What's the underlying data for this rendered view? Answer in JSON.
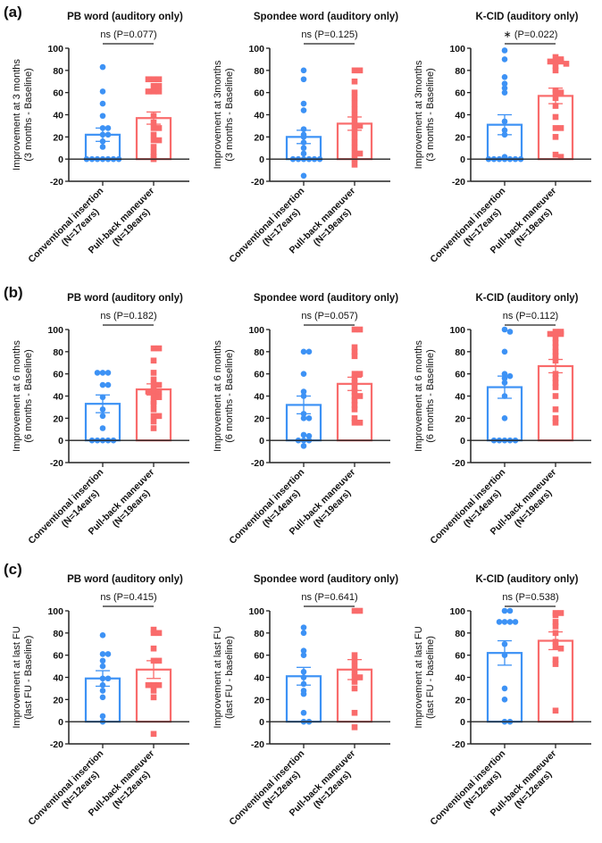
{
  "colors": {
    "conventional": "#3d92f5",
    "pullback": "#f96b6b",
    "axis": "#222222"
  },
  "row_labels": [
    "(a)",
    "(b)",
    "(c)"
  ],
  "chart_data": [
    {
      "type": "bar",
      "row": 0,
      "title": "PB word (auditory only)",
      "annotation": "ns (P=0.077)",
      "ylabel": [
        "Improvement at 3 months",
        "(3 months - Baseline)"
      ],
      "ylim": [
        -20,
        100
      ],
      "yticks": [
        -20,
        0,
        20,
        40,
        60,
        80,
        100
      ],
      "categories": [
        [
          "Conventional insertion",
          "(N=17ears)"
        ],
        [
          "Pull-back maneuver",
          "(N=19ears)"
        ]
      ],
      "series": [
        {
          "name": "Conventional insertion",
          "mean": 22,
          "sem": 6,
          "points": [
            83,
            61,
            50,
            39,
            28,
            28,
            22,
            22,
            16,
            11,
            0,
            0,
            0,
            0,
            0,
            0,
            0
          ]
        },
        {
          "name": "Pull-back maneuver",
          "mean": 37,
          "sem": 5.5,
          "points": [
            72,
            72,
            72,
            66,
            66,
            61,
            61,
            61,
            39,
            33,
            28,
            28,
            22,
            17,
            17,
            11,
            6,
            2,
            0
          ]
        }
      ]
    },
    {
      "type": "bar",
      "row": 0,
      "title": "Spondee word (auditory only)",
      "annotation": "ns (P=0.125)",
      "ylabel": [
        "Improvement at 3months",
        "(3 months - Baseline)"
      ],
      "ylim": [
        -20,
        100
      ],
      "yticks": [
        -20,
        0,
        20,
        40,
        60,
        80,
        100
      ],
      "categories": [
        [
          "Conventional insertion",
          "(N=17ears)"
        ],
        [
          "Pull-back maneuver",
          "(N=19ears)"
        ]
      ],
      "series": [
        {
          "name": "Conventional insertion",
          "mean": 20,
          "sem": 6,
          "points": [
            80,
            72,
            50,
            44,
            27,
            22,
            20,
            15,
            10,
            5,
            0,
            0,
            0,
            0,
            0,
            0,
            -15
          ]
        },
        {
          "name": "Pull-back maneuver",
          "mean": 32,
          "sem": 6,
          "points": [
            80,
            80,
            70,
            60,
            55,
            50,
            45,
            40,
            35,
            30,
            30,
            25,
            20,
            15,
            10,
            5,
            5,
            0,
            -5
          ]
        }
      ]
    },
    {
      "type": "bar",
      "row": 0,
      "title": "K-CID (auditory only)",
      "annotation": "∗ (P=0.022)",
      "ylabel": [
        "Improvement at 3months",
        "(3 months - Baseline)"
      ],
      "ylim": [
        -20,
        100
      ],
      "yticks": [
        -20,
        0,
        20,
        40,
        60,
        80,
        100
      ],
      "categories": [
        [
          "Conventional insertion",
          "(N=17ears)"
        ],
        [
          "Pull-back maneuver",
          "(N=19ears)"
        ]
      ],
      "series": [
        {
          "name": "Conventional insertion",
          "mean": 31,
          "sem": 9,
          "points": [
            98,
            90,
            74,
            68,
            64,
            60,
            34,
            26,
            22,
            2,
            0,
            0,
            0,
            0,
            0,
            0,
            0
          ]
        },
        {
          "name": "Pull-back maneuver",
          "mean": 57,
          "sem": 7,
          "points": [
            92,
            90,
            88,
            88,
            88,
            86,
            84,
            80,
            62,
            60,
            60,
            55,
            48,
            38,
            28,
            28,
            20,
            4,
            2
          ]
        }
      ]
    },
    {
      "type": "bar",
      "row": 1,
      "title": "PB word (auditory only)",
      "annotation": "ns (P=0.182)",
      "ylabel": [
        "Improvement at 6 months",
        "(6 months - Baseline)"
      ],
      "ylim": [
        -20,
        100
      ],
      "yticks": [
        -20,
        0,
        20,
        40,
        60,
        80,
        100
      ],
      "categories": [
        [
          "Conventional insertion",
          "(N=14ears)"
        ],
        [
          "Pull-back maneuver",
          "(N=19ears)"
        ]
      ],
      "series": [
        {
          "name": "Conventional insertion",
          "mean": 33,
          "sem": 8,
          "points": [
            61,
            61,
            61,
            50,
            50,
            39,
            28,
            22,
            11,
            0,
            0,
            0,
            0,
            0
          ]
        },
        {
          "name": "Pull-back maneuver",
          "mean": 46,
          "sem": 5,
          "points": [
            83,
            83,
            72,
            61,
            55,
            50,
            50,
            45,
            44,
            44,
            40,
            39,
            35,
            33,
            28,
            22,
            22,
            17,
            11
          ]
        }
      ]
    },
    {
      "type": "bar",
      "row": 1,
      "title": "Spondee word (auditory only)",
      "annotation": "ns (P=0.057)",
      "ylabel": [
        "Improvement at 6 months",
        "(6 months - Baseline)"
      ],
      "ylim": [
        -20,
        100
      ],
      "yticks": [
        -20,
        0,
        20,
        40,
        60,
        80,
        100
      ],
      "categories": [
        [
          "Conventional insertion",
          "(N=14ears)"
        ],
        [
          "Pull-back maneuver",
          "(N=19ears)"
        ]
      ],
      "series": [
        {
          "name": "Conventional insertion",
          "mean": 32,
          "sem": 8,
          "points": [
            80,
            80,
            60,
            44,
            40,
            24,
            20,
            20,
            5,
            4,
            0,
            0,
            0,
            -5
          ]
        },
        {
          "name": "Pull-back maneuver",
          "mean": 51,
          "sem": 6,
          "points": [
            100,
            100,
            84,
            80,
            76,
            60,
            60,
            56,
            52,
            48,
            44,
            40,
            40,
            36,
            32,
            28,
            20,
            16,
            16
          ]
        }
      ]
    },
    {
      "type": "bar",
      "row": 1,
      "title": "K-CID (auditory only)",
      "annotation": "ns (P=0.112)",
      "ylabel": [
        "Improvement at 6 months",
        "(6 months - Baseline)"
      ],
      "ylim": [
        -20,
        100
      ],
      "yticks": [
        -20,
        0,
        20,
        40,
        60,
        80,
        100
      ],
      "categories": [
        [
          "Conventional insertion",
          "(N=14ears)"
        ],
        [
          "Pull-back maneuver",
          "(N=19ears)"
        ]
      ],
      "series": [
        {
          "name": "Conventional insertion",
          "mean": 48,
          "sem": 10,
          "points": [
            100,
            98,
            80,
            60,
            58,
            56,
            52,
            40,
            20,
            0,
            0,
            0,
            0,
            0
          ]
        },
        {
          "name": "Pull-back maneuver",
          "mean": 67,
          "sem": 6,
          "points": [
            98,
            98,
            96,
            96,
            96,
            92,
            88,
            84,
            80,
            76,
            72,
            60,
            56,
            52,
            48,
            40,
            28,
            20,
            16
          ]
        }
      ]
    },
    {
      "type": "bar",
      "row": 2,
      "title": "PB word (auditory only)",
      "annotation": "ns (P=0.415)",
      "ylabel": [
        "Improvement at last FU",
        "(last FU - Baseline)"
      ],
      "ylim": [
        -20,
        100
      ],
      "yticks": [
        -20,
        0,
        20,
        40,
        60,
        80,
        100
      ],
      "categories": [
        [
          "Conventional insertion",
          "(N=12ears)"
        ],
        [
          "Pull-back maneuver",
          "(N=12ears)"
        ]
      ],
      "series": [
        {
          "name": "Conventional insertion",
          "mean": 39,
          "sem": 7,
          "points": [
            78,
            61,
            61,
            55,
            50,
            39,
            39,
            33,
            28,
            22,
            5,
            0
          ]
        },
        {
          "name": "Pull-back maneuver",
          "mean": 47,
          "sem": 8,
          "points": [
            83,
            80,
            80,
            66,
            55,
            55,
            33,
            33,
            33,
            28,
            22,
            -11
          ]
        }
      ]
    },
    {
      "type": "bar",
      "row": 2,
      "title": "Spondee word (auditory only)",
      "annotation": "ns (P=0.641)",
      "ylabel": [
        "Improvement at last FU",
        "(last FU - baseline)"
      ],
      "ylim": [
        -20,
        100
      ],
      "yticks": [
        -20,
        0,
        20,
        40,
        60,
        80,
        100
      ],
      "categories": [
        [
          "Conventional insertion",
          "(N=12ears)"
        ],
        [
          "Pull-back maneuver",
          "(N=12ears)"
        ]
      ],
      "series": [
        {
          "name": "Conventional insertion",
          "mean": 41,
          "sem": 8,
          "points": [
            85,
            80,
            64,
            60,
            45,
            40,
            34,
            28,
            25,
            8,
            0,
            0
          ]
        },
        {
          "name": "Pull-back maneuver",
          "mean": 47,
          "sem": 9,
          "points": [
            100,
            100,
            60,
            55,
            50,
            45,
            40,
            40,
            36,
            30,
            8,
            -5
          ]
        }
      ]
    },
    {
      "type": "bar",
      "row": 2,
      "title": "K-CID (auditory only)",
      "annotation": "ns (P=0.538)",
      "ylabel": [
        "Improvement at last FU",
        "(last FU - baseline)"
      ],
      "ylim": [
        -20,
        100
      ],
      "yticks": [
        -20,
        0,
        20,
        40,
        60,
        80,
        100
      ],
      "categories": [
        [
          "Conventional insertion",
          "(N=12ears)"
        ],
        [
          "Pull-back maneuver",
          "(N=12ears)"
        ]
      ],
      "series": [
        {
          "name": "Conventional insertion",
          "mean": 62,
          "sem": 11,
          "points": [
            100,
            100,
            90,
            90,
            90,
            90,
            70,
            60,
            30,
            20,
            0,
            0
          ]
        },
        {
          "name": "Pull-back maneuver",
          "mean": 73,
          "sem": 8,
          "points": [
            98,
            98,
            96,
            90,
            86,
            80,
            72,
            68,
            66,
            56,
            52,
            10
          ]
        }
      ]
    }
  ]
}
